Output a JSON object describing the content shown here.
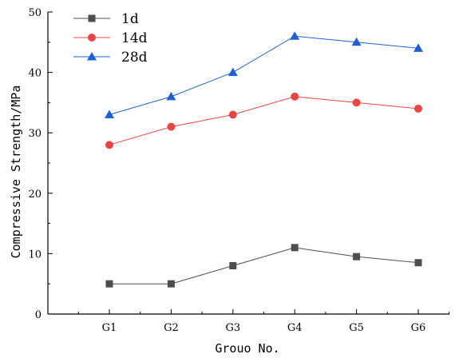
{
  "chart_data": {
    "type": "line",
    "title": "",
    "xlabel": "Grouo No.",
    "ylabel": "Compressive Strength/MPa",
    "categories": [
      "G1",
      "G2",
      "G3",
      "G4",
      "G5",
      "G6"
    ],
    "ylim": [
      0,
      50
    ],
    "yticks": [
      "0",
      "10",
      "20",
      "30",
      "40",
      "50"
    ],
    "grid": false,
    "legend_position": "top-left",
    "series": [
      {
        "name": "1d",
        "marker": "square",
        "color": "#4d4d4d",
        "values": [
          5,
          5,
          8,
          11,
          9.5,
          8.5
        ]
      },
      {
        "name": "14d",
        "marker": "circle",
        "color": "#e84545",
        "values": [
          28,
          31,
          33,
          36,
          35,
          34
        ]
      },
      {
        "name": "28d",
        "marker": "triangle",
        "color": "#1f5fd1",
        "values": [
          33,
          36,
          40,
          46,
          45,
          44
        ]
      }
    ]
  }
}
